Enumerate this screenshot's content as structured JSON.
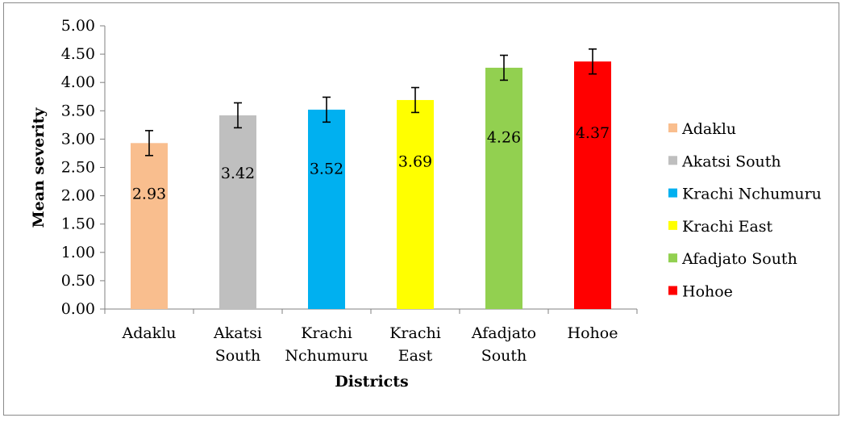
{
  "chart_data": {
    "type": "bar",
    "title": "",
    "xlabel": "Districts",
    "ylabel": "Mean severity",
    "ylim": [
      0,
      5
    ],
    "yticks": [
      "0.00",
      "0.50",
      "1.00",
      "1.50",
      "2.00",
      "2.50",
      "3.00",
      "3.50",
      "4.00",
      "4.50",
      "5.00"
    ],
    "grid": false,
    "legend_position": "right",
    "categories": [
      "Adaklu",
      "Akatsi South",
      "Krachi Nchumuru",
      "Krachi East",
      "Afadjato South",
      "Hohoe"
    ],
    "category_lines": [
      [
        "Adaklu"
      ],
      [
        "Akatsi",
        "South"
      ],
      [
        "Krachi",
        "Nchumuru"
      ],
      [
        "Krachi",
        "East"
      ],
      [
        "Afadjato",
        "South"
      ],
      [
        "Hohoe"
      ]
    ],
    "values": [
      2.93,
      3.42,
      3.52,
      3.69,
      4.26,
      4.37
    ],
    "value_labels": [
      "2.93",
      "3.42",
      "3.52",
      "3.69",
      "4.26",
      "4.37"
    ],
    "error": [
      0.22,
      0.22,
      0.22,
      0.22,
      0.22,
      0.22
    ],
    "colors": [
      "#F9BE8E",
      "#BFBFBF",
      "#00B0F0",
      "#FFFF00",
      "#92D050",
      "#FF0000"
    ],
    "legend": [
      "Adaklu",
      "Akatsi South",
      "Krachi Nchumuru",
      "Krachi East",
      "Afadjato South",
      "Hohoe"
    ]
  }
}
